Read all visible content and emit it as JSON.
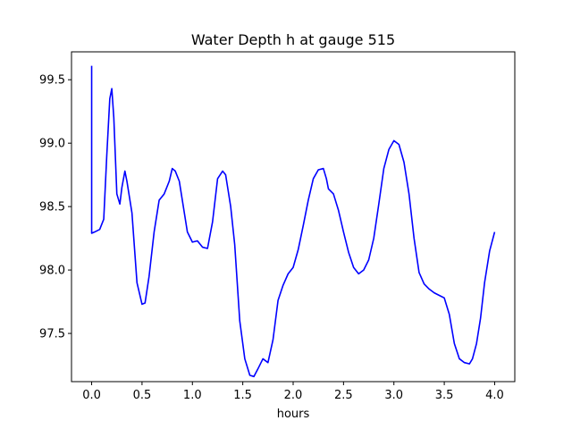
{
  "chart_data": {
    "type": "line",
    "title": "Water Depth h at gauge 515",
    "xlabel": "hours",
    "ylabel": "",
    "xlim": [
      -0.2,
      4.2
    ],
    "ylim": [
      97.12,
      99.72
    ],
    "xticks": [
      0.0,
      0.5,
      1.0,
      1.5,
      2.0,
      2.5,
      3.0,
      3.5,
      4.0
    ],
    "xtick_labels": [
      "0.0",
      "0.5",
      "1.0",
      "1.5",
      "2.0",
      "2.5",
      "3.0",
      "3.5",
      "4.0"
    ],
    "yticks": [
      97.5,
      98.0,
      98.5,
      99.0,
      99.5
    ],
    "ytick_labels": [
      "97.5",
      "98.0",
      "98.5",
      "99.0",
      "99.5"
    ],
    "grid": false,
    "series": [
      {
        "color": "#0000ff",
        "x": [
          0.0,
          0.0,
          0.03,
          0.08,
          0.12,
          0.15,
          0.18,
          0.2,
          0.22,
          0.25,
          0.28,
          0.3,
          0.33,
          0.35,
          0.4,
          0.45,
          0.5,
          0.53,
          0.57,
          0.62,
          0.67,
          0.72,
          0.77,
          0.8,
          0.83,
          0.87,
          0.9,
          0.95,
          1.0,
          1.05,
          1.1,
          1.15,
          1.2,
          1.25,
          1.3,
          1.33,
          1.38,
          1.42,
          1.47,
          1.52,
          1.57,
          1.61,
          1.65,
          1.7,
          1.75,
          1.8,
          1.85,
          1.9,
          1.95,
          2.0,
          2.05,
          2.1,
          2.15,
          2.2,
          2.25,
          2.3,
          2.33,
          2.35,
          2.4,
          2.45,
          2.5,
          2.55,
          2.6,
          2.65,
          2.7,
          2.75,
          2.8,
          2.85,
          2.9,
          2.95,
          3.0,
          3.05,
          3.1,
          3.15,
          3.2,
          3.25,
          3.3,
          3.35,
          3.4,
          3.45,
          3.5,
          3.55,
          3.6,
          3.65,
          3.7,
          3.75,
          3.78,
          3.82,
          3.86,
          3.9,
          3.95,
          4.0
        ],
        "y": [
          99.61,
          98.29,
          98.3,
          98.32,
          98.4,
          98.9,
          99.35,
          99.43,
          99.2,
          98.6,
          98.52,
          98.65,
          98.78,
          98.7,
          98.45,
          97.9,
          97.73,
          97.74,
          97.95,
          98.3,
          98.55,
          98.6,
          98.7,
          98.8,
          98.78,
          98.7,
          98.55,
          98.3,
          98.22,
          98.23,
          98.18,
          98.17,
          98.38,
          98.72,
          98.78,
          98.75,
          98.5,
          98.2,
          97.6,
          97.3,
          97.17,
          97.16,
          97.22,
          97.3,
          97.27,
          97.45,
          97.76,
          97.88,
          97.97,
          98.02,
          98.16,
          98.35,
          98.55,
          98.72,
          98.79,
          98.8,
          98.72,
          98.64,
          98.6,
          98.47,
          98.3,
          98.14,
          98.02,
          97.97,
          98.0,
          98.08,
          98.25,
          98.52,
          98.8,
          98.95,
          99.02,
          98.99,
          98.85,
          98.6,
          98.25,
          97.98,
          97.89,
          97.85,
          97.82,
          97.8,
          97.78,
          97.65,
          97.42,
          97.3,
          97.27,
          97.26,
          97.3,
          97.42,
          97.62,
          97.9,
          98.15,
          98.3
        ]
      }
    ]
  }
}
